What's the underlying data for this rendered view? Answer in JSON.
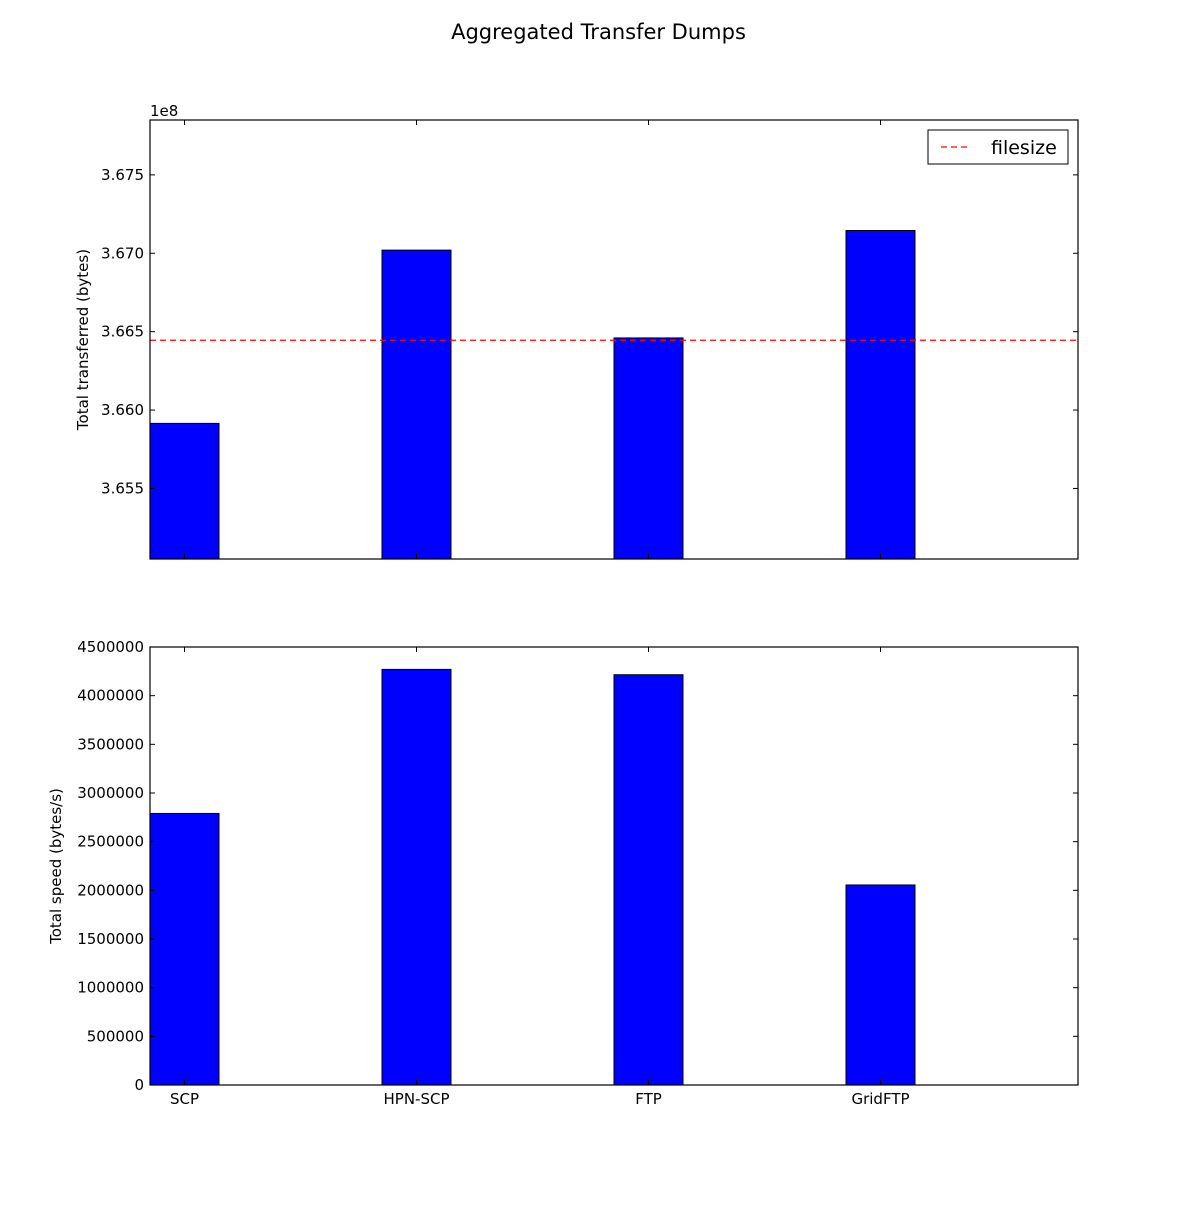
{
  "figure": {
    "title": "Aggregated Transfer Dumps"
  },
  "colors": {
    "bar_fill": "#0000ff",
    "bar_edge": "#000000",
    "reference_line": "#ff0000",
    "axes": "#000000"
  },
  "chart_data": [
    {
      "type": "bar",
      "title": "",
      "categories": [
        "SCP",
        "HPN-SCP",
        "FTP",
        "GridFTP"
      ],
      "series": [
        {
          "values": [
            365915000,
            367020000,
            366460000,
            367145000
          ]
        }
      ],
      "ylabel": "Total transferred (bytes)",
      "xlabel": "",
      "ylim": [
        365050000,
        367850000
      ],
      "yticks": [
        365500000,
        366000000,
        366500000,
        367000000,
        367500000
      ],
      "ytick_labels": [
        "3.655",
        "3.660",
        "3.665",
        "3.670",
        "3.675"
      ],
      "offset_label": "1e8",
      "show_xtick_labels": false,
      "grid": false,
      "reference_line": {
        "name": "filesize",
        "value": 366445000,
        "style": "dashed"
      },
      "legend": {
        "position": "top-right",
        "entries": [
          "filesize"
        ]
      }
    },
    {
      "type": "bar",
      "title": "",
      "categories": [
        "SCP",
        "HPN-SCP",
        "FTP",
        "GridFTP"
      ],
      "series": [
        {
          "values": [
            2790000,
            4270000,
            4215000,
            2055000
          ]
        }
      ],
      "ylabel": "Total speed (bytes/s)",
      "xlabel": "",
      "ylim": [
        0,
        4500000
      ],
      "yticks": [
        0,
        500000,
        1000000,
        1500000,
        2000000,
        2500000,
        3000000,
        3500000,
        4000000,
        4500000
      ],
      "ytick_labels": [
        "0",
        "500000",
        "1000000",
        "1500000",
        "2000000",
        "2500000",
        "3000000",
        "3500000",
        "4000000",
        "4500000"
      ],
      "show_xtick_labels": true,
      "grid": false
    }
  ]
}
